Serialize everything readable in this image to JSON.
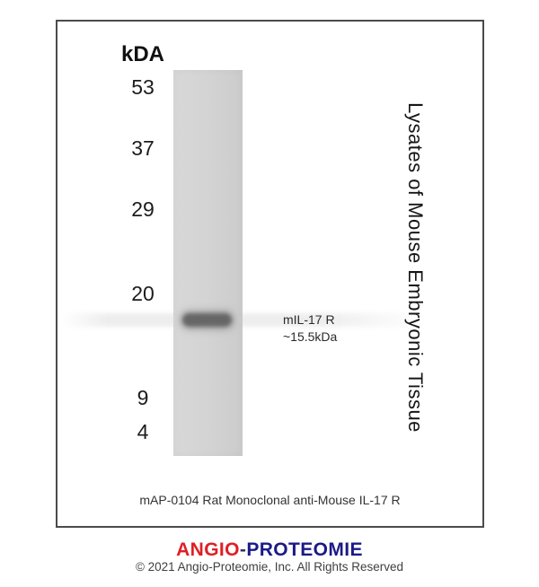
{
  "figure": {
    "unit_label": "kDA",
    "mw_markers": [
      "53",
      "37",
      "29",
      "20",
      "9",
      "4"
    ],
    "band": {
      "label_line1": "mIL-17 R",
      "label_line2": "~15.5kDa"
    },
    "sample_label": "Lysates of Mouse Embryonic Tissue",
    "caption": "mAP-0104 Rat Monoclonal anti-Mouse IL-17 R"
  },
  "footer": {
    "logo_part1": "ANGIO",
    "logo_separator": "-",
    "logo_part2": "PROTEOMIE",
    "copyright": "© 2021 Angio-Proteomie, Inc. All Rights Reserved"
  },
  "colors": {
    "logo_part1": "#e01e25",
    "logo_separator": "#333355",
    "logo_part2": "#1c1a86",
    "band": "#666666",
    "lane_background": "#d3d3d3",
    "panel_border": "#4b4b4b"
  }
}
